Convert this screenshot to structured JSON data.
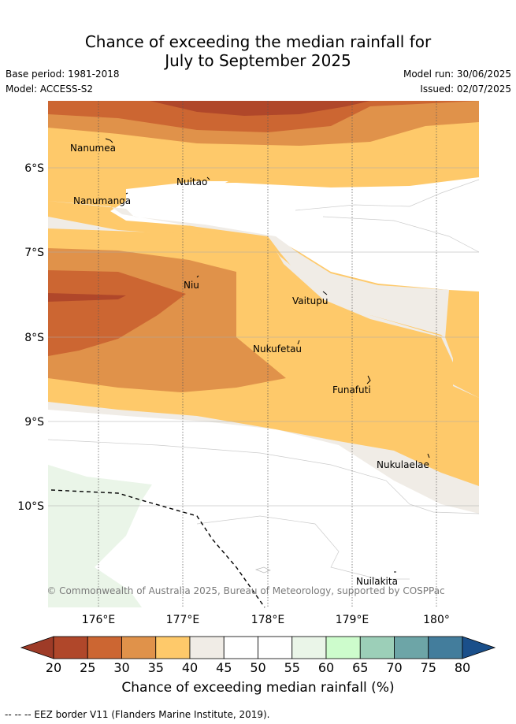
{
  "title_line1": "Chance of exceeding the median rainfall for",
  "title_line2": "July to September 2025",
  "base_period": "Base period: 1981-2018",
  "model": "Model: ACCESS-S2",
  "model_run": "Model run: 30/06/2025",
  "issued": "Issued: 02/07/2025",
  "lat_labels": [
    "6°S",
    "7°S",
    "8°S",
    "9°S",
    "10°S"
  ],
  "lon_labels": [
    "176°E",
    "177°E",
    "178°E",
    "179°E",
    "180°"
  ],
  "places": [
    "Nanumea",
    "Nuitao",
    "Nanumanga",
    "Niu",
    "Vaitupu",
    "Nukufetau",
    "Funafuti",
    "Nukulaelae",
    "Nuilakita"
  ],
  "copyright": "© Commonwealth of Australia 2025, Bureau of Meteorology, supported by COSPPac",
  "colorbar": {
    "ticks": [
      "20",
      "25",
      "30",
      "35",
      "40",
      "45",
      "50",
      "55",
      "60",
      "65",
      "70",
      "75",
      "80"
    ],
    "colors": [
      "#b0472a",
      "#cc6632",
      "#e0924a",
      "#fec96a",
      "#f0ece6",
      "#ffffff",
      "#ffffff",
      "#eaf5e8",
      "#cdfccc",
      "#9ccfb8",
      "#6da5a7",
      "#437d9c"
    ],
    "under_color": "#9e3b27",
    "over_color": "#1a4f8a",
    "label": "Chance of exceeding median rainfall (%)"
  },
  "footer": "-- -- -- EEZ border V11 (Flanders Marine Institute, 2019)."
}
